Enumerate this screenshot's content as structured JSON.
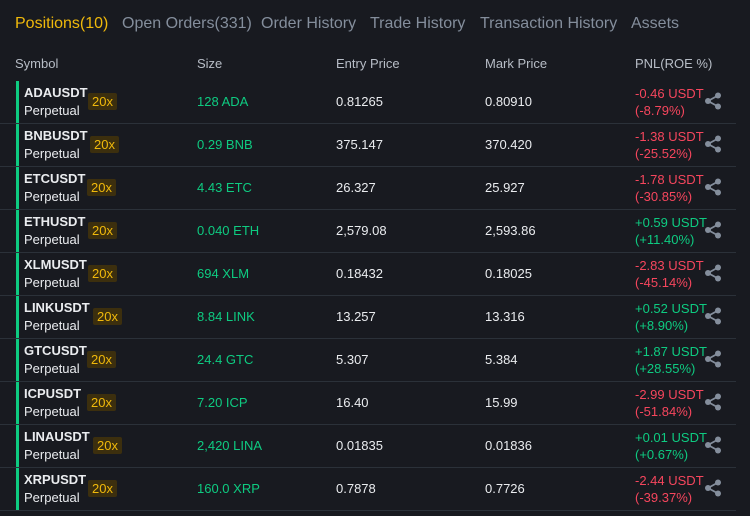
{
  "tabs": [
    {
      "label": "Positions(10)"
    },
    {
      "label": "Open Orders(331)"
    },
    {
      "label": "Order History"
    },
    {
      "label": "Trade History"
    },
    {
      "label": "Transaction History"
    },
    {
      "label": "Assets"
    }
  ],
  "columns": {
    "symbol": "Symbol",
    "size": "Size",
    "entry_price": "Entry Price",
    "mark_price": "Mark Price",
    "pnl": "PNL(ROE %)"
  },
  "colors": {
    "accent": "#f0b90b",
    "positive": "#0ecb81",
    "negative": "#f6465d",
    "background": "#181a20"
  },
  "positions": [
    {
      "symbol": "ADAUSDT",
      "type": "Perpetual",
      "leverage": "20x",
      "size": "128 ADA",
      "entry_price": "0.81265",
      "mark_price": "0.80910",
      "pnl": "-0.46 USDT",
      "roe": "(-8.79%)",
      "direction": "neg"
    },
    {
      "symbol": "BNBUSDT",
      "type": "Perpetual",
      "leverage": "20x",
      "size": "0.29 BNB",
      "entry_price": "375.147",
      "mark_price": "370.420",
      "pnl": "-1.38 USDT",
      "roe": "(-25.52%)",
      "direction": "neg"
    },
    {
      "symbol": "ETCUSDT",
      "type": "Perpetual",
      "leverage": "20x",
      "size": "4.43 ETC",
      "entry_price": "26.327",
      "mark_price": "25.927",
      "pnl": "-1.78 USDT",
      "roe": "(-30.85%)",
      "direction": "neg"
    },
    {
      "symbol": "ETHUSDT",
      "type": "Perpetual",
      "leverage": "20x",
      "size": "0.040 ETH",
      "entry_price": "2,579.08",
      "mark_price": "2,593.86",
      "pnl": "+0.59 USDT",
      "roe": "(+11.40%)",
      "direction": "pos"
    },
    {
      "symbol": "XLMUSDT",
      "type": "Perpetual",
      "leverage": "20x",
      "size": "694 XLM",
      "entry_price": "0.18432",
      "mark_price": "0.18025",
      "pnl": "-2.83 USDT",
      "roe": "(-45.14%)",
      "direction": "neg"
    },
    {
      "symbol": "LINKUSDT",
      "type": "Perpetual",
      "leverage": "20x",
      "size": "8.84 LINK",
      "entry_price": "13.257",
      "mark_price": "13.316",
      "pnl": "+0.52 USDT",
      "roe": "(+8.90%)",
      "direction": "pos"
    },
    {
      "symbol": "GTCUSDT",
      "type": "Perpetual",
      "leverage": "20x",
      "size": "24.4 GTC",
      "entry_price": "5.307",
      "mark_price": "5.384",
      "pnl": "+1.87 USDT",
      "roe": "(+28.55%)",
      "direction": "pos"
    },
    {
      "symbol": "ICPUSDT",
      "type": "Perpetual",
      "leverage": "20x",
      "size": "7.20 ICP",
      "entry_price": "16.40",
      "mark_price": "15.99",
      "pnl": "-2.99 USDT",
      "roe": "(-51.84%)",
      "direction": "neg"
    },
    {
      "symbol": "LINAUSDT",
      "type": "Perpetual",
      "leverage": "20x",
      "size": "2,420 LINA",
      "entry_price": "0.01835",
      "mark_price": "0.01836",
      "pnl": "+0.01 USDT",
      "roe": "(+0.67%)",
      "direction": "pos"
    },
    {
      "symbol": "XRPUSDT",
      "type": "Perpetual",
      "leverage": "20x",
      "size": "160.0 XRP",
      "entry_price": "0.7878",
      "mark_price": "0.7726",
      "pnl": "-2.44 USDT",
      "roe": "(-39.37%)",
      "direction": "neg"
    }
  ]
}
